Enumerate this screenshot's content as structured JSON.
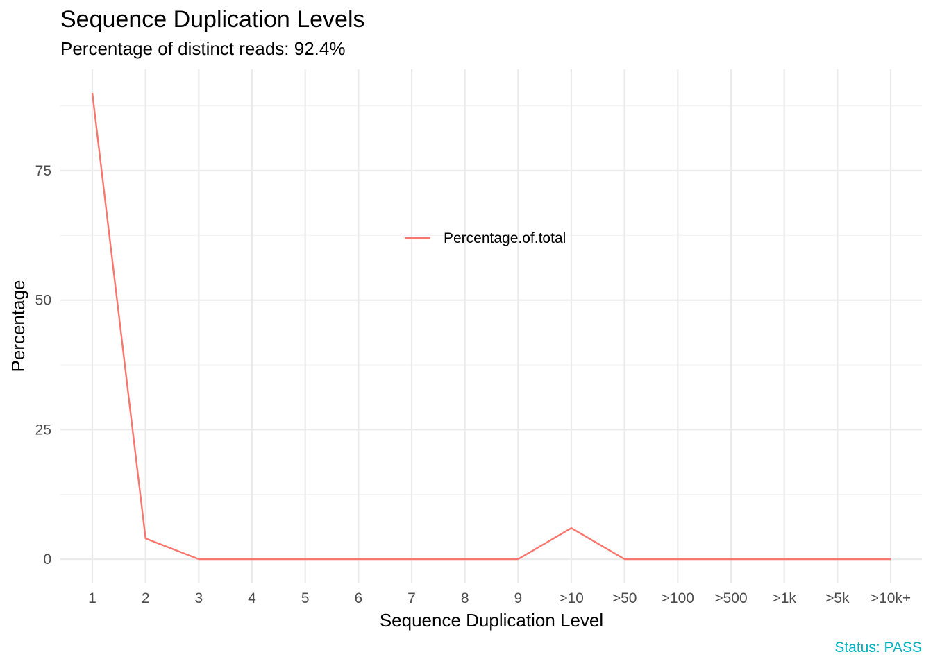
{
  "colors": {
    "series": "#F8766D",
    "status": "#00B2BF"
  },
  "chart_data": {
    "type": "line",
    "title": "Sequence Duplication Levels",
    "subtitle": "Percentage of distinct reads: 92.4%",
    "xlabel": "Sequence Duplication Level",
    "ylabel": "Percentage",
    "categories": [
      "1",
      "2",
      "3",
      "4",
      "5",
      "6",
      "7",
      "8",
      "9",
      ">10",
      ">50",
      ">100",
      ">500",
      ">1k",
      ">5k",
      ">10k+"
    ],
    "y_ticks": [
      "0",
      "25",
      "50",
      "75"
    ],
    "ylim": [
      -3,
      94
    ],
    "grid": true,
    "legend_position": "inside-top-center",
    "series": [
      {
        "name": "Percentage.of.total",
        "values": [
          90,
          4,
          0,
          0,
          0,
          0,
          0,
          0,
          0,
          6,
          0,
          0,
          0,
          0,
          0,
          0
        ]
      }
    ],
    "caption": "Status: PASS"
  }
}
